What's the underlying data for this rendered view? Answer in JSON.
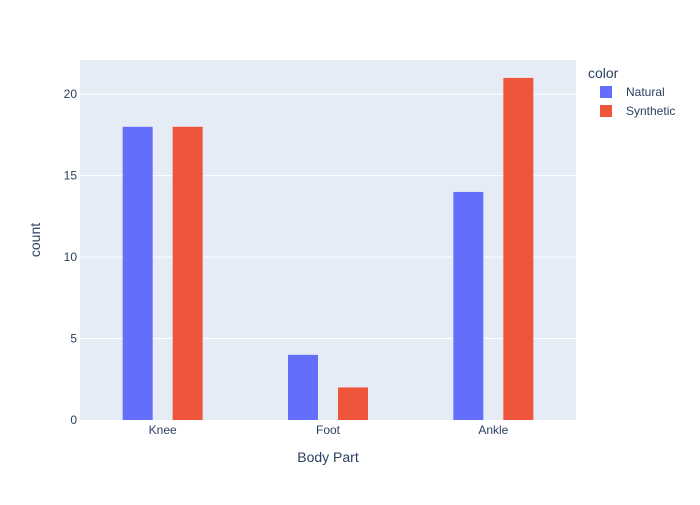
{
  "chart_data": {
    "type": "bar",
    "barmode": "group",
    "categories": [
      "Knee",
      "Foot",
      "Ankle"
    ],
    "series": [
      {
        "name": "Natural",
        "values": [
          18,
          4,
          14
        ],
        "color": "#636EFA"
      },
      {
        "name": "Synthetic",
        "values": [
          18,
          2,
          21
        ],
        "color": "#EF553B"
      }
    ],
    "title": "",
    "xlabel": "Body Part",
    "ylabel": "count",
    "ylim": [
      0,
      22.1
    ],
    "yticks": [
      0,
      5,
      10,
      15,
      20
    ],
    "grid": true,
    "legend": {
      "title": "color",
      "placement": "top-right"
    },
    "plot_background": "#E5ECF6"
  }
}
